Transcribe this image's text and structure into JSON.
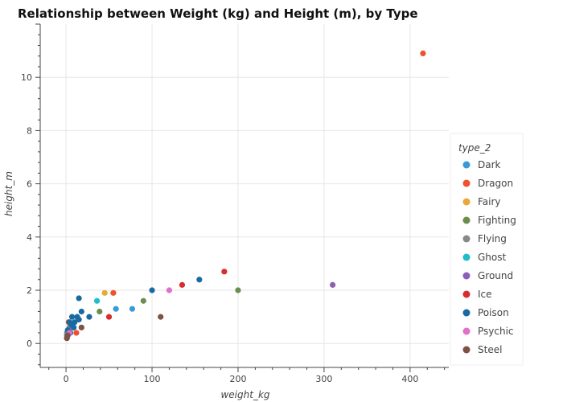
{
  "chart_data": {
    "type": "scatter",
    "title": "Relationship between Weight (kg) and Height (m), by Type",
    "xlabel": "weight_kg",
    "ylabel": "height_m",
    "xlim": [
      -30,
      445
    ],
    "ylim": [
      -0.9,
      12
    ],
    "x_ticks": [
      0,
      100,
      200,
      300,
      400
    ],
    "y_ticks": [
      0,
      2,
      4,
      6,
      8,
      10
    ],
    "grid": true,
    "legend": {
      "title": "type_2",
      "placement": "right"
    },
    "series": [
      {
        "name": "Dark",
        "color": "#3a9ad9",
        "points": [
          [
            58,
            1.3
          ],
          [
            77,
            1.3
          ],
          [
            1,
            0.3
          ],
          [
            3,
            0.5
          ]
        ]
      },
      {
        "name": "Dragon",
        "color": "#f0502d",
        "points": [
          [
            415,
            10.9
          ],
          [
            55,
            1.9
          ],
          [
            12,
            0.4
          ],
          [
            3,
            0.8
          ]
        ]
      },
      {
        "name": "Fairy",
        "color": "#e8a93a",
        "points": [
          [
            45,
            1.9
          ],
          [
            2,
            0.4
          ]
        ]
      },
      {
        "name": "Fighting",
        "color": "#6b8e4e",
        "points": [
          [
            200,
            2.0
          ],
          [
            90,
            1.6
          ],
          [
            39,
            1.2
          ]
        ]
      },
      {
        "name": "Flying",
        "color": "#888888",
        "points": [
          [
            4,
            0.6
          ],
          [
            8,
            0.6
          ],
          [
            1,
            0.4
          ]
        ]
      },
      {
        "name": "Ghost",
        "color": "#1fbcc9",
        "points": [
          [
            36,
            1.6
          ],
          [
            2,
            0.3
          ]
        ]
      },
      {
        "name": "Ground",
        "color": "#8e5fb8",
        "points": [
          [
            310,
            2.2
          ]
        ]
      },
      {
        "name": "Ice",
        "color": "#d62d2d",
        "points": [
          [
            184,
            2.7
          ],
          [
            135,
            2.2
          ],
          [
            50,
            1.0
          ]
        ]
      },
      {
        "name": "Poison",
        "color": "#1a6aa2",
        "points": [
          [
            155,
            2.4
          ],
          [
            100,
            2.0
          ],
          [
            15,
            1.7
          ],
          [
            18,
            1.2
          ],
          [
            13,
            1.0
          ],
          [
            7,
            1.0
          ],
          [
            27,
            1.0
          ],
          [
            10,
            0.8
          ],
          [
            6,
            0.7
          ],
          [
            9,
            0.6
          ],
          [
            15,
            0.9
          ],
          [
            4,
            0.8
          ],
          [
            2,
            0.5
          ],
          [
            1,
            0.2
          ],
          [
            5,
            0.4
          ]
        ]
      },
      {
        "name": "Psychic",
        "color": "#e36fc8",
        "points": [
          [
            120,
            2.0
          ],
          [
            4,
            0.4
          ]
        ]
      },
      {
        "name": "Steel",
        "color": "#7e5245",
        "points": [
          [
            110,
            1.0
          ],
          [
            18,
            0.6
          ],
          [
            2,
            0.3
          ],
          [
            1,
            0.2
          ]
        ]
      }
    ]
  }
}
